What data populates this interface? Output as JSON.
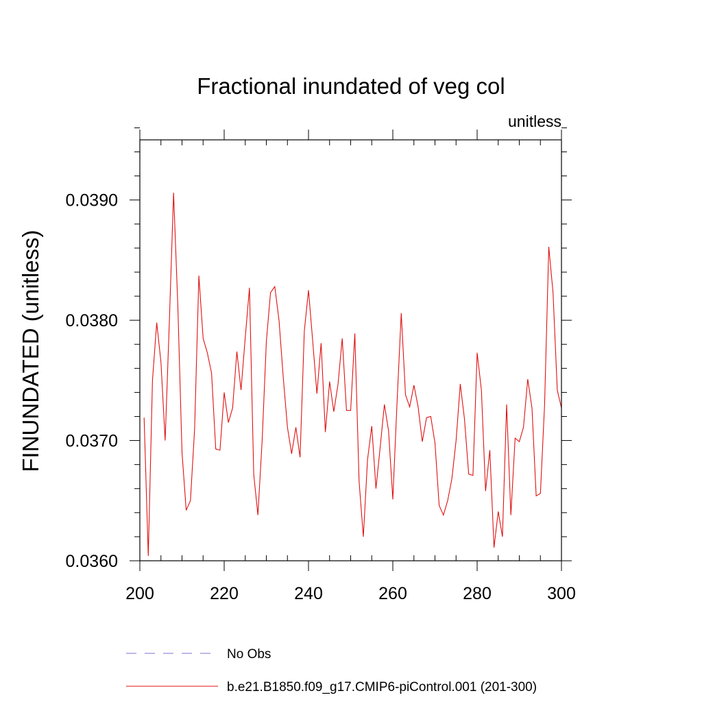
{
  "chart_data": {
    "type": "line",
    "title": "Fractional inundated of veg col",
    "units": "unitless",
    "xlabel": "",
    "ylabel": "FINUNDATED  (unitless)",
    "xlim": [
      200,
      300
    ],
    "ylim": [
      0.036,
      0.0395
    ],
    "x_ticks": [
      200,
      220,
      240,
      260,
      280,
      300
    ],
    "x_tick_labels": [
      "200",
      "220",
      "240",
      "260",
      "280",
      "300"
    ],
    "x_minor_step": 5,
    "y_ticks": [
      0.036,
      0.037,
      0.038,
      0.039
    ],
    "y_tick_labels": [
      "0.0360",
      "0.0370",
      "0.0380",
      "0.0390"
    ],
    "y_minor_step": 0.0002,
    "legend_position": "bottom",
    "series": [
      {
        "name": "No Obs",
        "color": "#7b6fd0",
        "dash": "dashed",
        "x": [],
        "values": []
      },
      {
        "name": "b.e21.B1850.f09_g17.CMIP6-piControl.001 (201-300)",
        "color": "#e01010",
        "dash": "solid",
        "x": [
          201,
          202,
          203,
          204,
          205,
          206,
          207,
          208,
          209,
          210,
          211,
          212,
          213,
          214,
          215,
          216,
          217,
          218,
          219,
          220,
          221,
          222,
          223,
          224,
          225,
          226,
          227,
          228,
          229,
          230,
          231,
          232,
          233,
          234,
          235,
          236,
          237,
          238,
          239,
          240,
          241,
          242,
          243,
          244,
          245,
          246,
          247,
          248,
          249,
          250,
          251,
          252,
          253,
          254,
          255,
          256,
          257,
          258,
          259,
          260,
          261,
          262,
          263,
          264,
          265,
          266,
          267,
          268,
          269,
          270,
          271,
          272,
          273,
          274,
          275,
          276,
          277,
          278,
          279,
          280,
          281,
          282,
          283,
          284,
          285,
          286,
          287,
          288,
          289,
          290,
          291,
          292,
          293,
          294,
          295,
          296,
          297,
          298,
          299,
          300
        ],
        "values": [
          0.03719,
          0.03604,
          0.0375,
          0.03798,
          0.03765,
          0.037,
          0.038,
          0.03906,
          0.03812,
          0.0369,
          0.03642,
          0.0365,
          0.0371,
          0.03837,
          0.03785,
          0.03773,
          0.03756,
          0.03693,
          0.03692,
          0.0374,
          0.03715,
          0.03727,
          0.03774,
          0.03742,
          0.03786,
          0.03827,
          0.03672,
          0.03638,
          0.037,
          0.03782,
          0.03823,
          0.03828,
          0.038,
          0.03753,
          0.03711,
          0.03689,
          0.03711,
          0.03686,
          0.03791,
          0.03825,
          0.03783,
          0.03739,
          0.03781,
          0.03707,
          0.03749,
          0.03724,
          0.03747,
          0.03785,
          0.03725,
          0.03725,
          0.03789,
          0.03666,
          0.0362,
          0.03684,
          0.03712,
          0.0366,
          0.03694,
          0.0373,
          0.03708,
          0.03651,
          0.03731,
          0.03806,
          0.03738,
          0.03728,
          0.03746,
          0.03728,
          0.03699,
          0.03719,
          0.0372,
          0.03698,
          0.03646,
          0.03638,
          0.0365,
          0.03668,
          0.037,
          0.03747,
          0.03718,
          0.03672,
          0.03671,
          0.03773,
          0.03742,
          0.03658,
          0.03692,
          0.03611,
          0.03641,
          0.0362,
          0.0373,
          0.03638,
          0.03702,
          0.03699,
          0.03711,
          0.03751,
          0.03727,
          0.03654,
          0.03656,
          0.0373,
          0.03861,
          0.03823,
          0.03742,
          0.03727
        ]
      }
    ]
  }
}
